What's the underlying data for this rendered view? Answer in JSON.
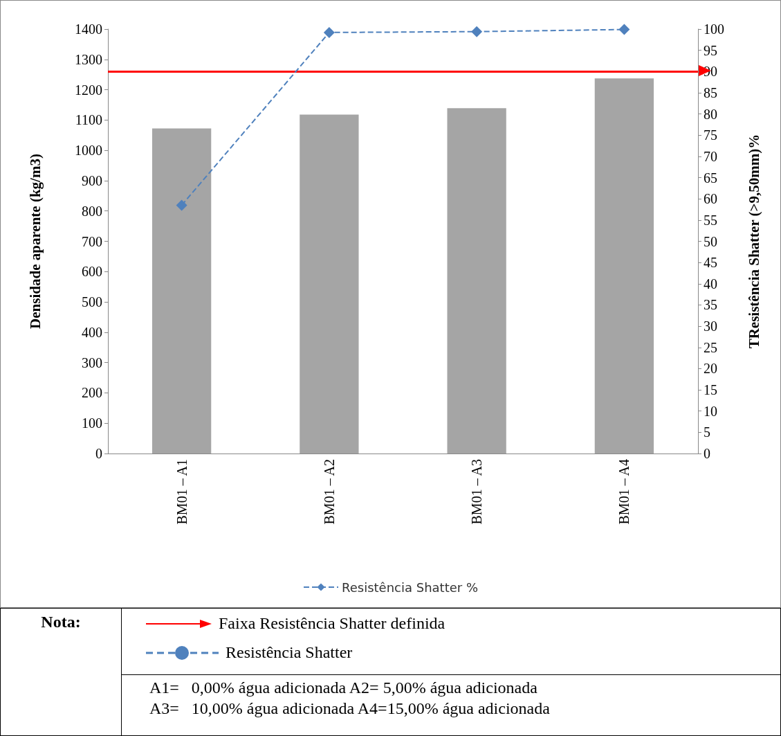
{
  "chart_data": {
    "type": "bar",
    "ylabel": "Densidade aparente (kg/m3)",
    "y2label": "TResistência Shatter (>9,50mm)%",
    "categories": [
      "BM01 – A1",
      "BM01 – A2",
      "BM01 – A3",
      "BM01 – A4"
    ],
    "series": [
      {
        "color": "#a5a5a5",
        "values": [
          1072,
          1118,
          1139,
          1237
        ]
      },
      {
        "type": "line",
        "name": "Resistência Shatter %",
        "color": "#4f81bd",
        "axis": "y2",
        "marker": "diamond",
        "line_style": "dashed",
        "values": [
          58.5,
          99.2,
          99.4,
          99.9
        ]
      }
    ],
    "ylim": [
      0,
      1400
    ],
    "yticks": [
      0,
      100,
      200,
      300,
      400,
      500,
      600,
      700,
      800,
      900,
      1000,
      1100,
      1200,
      1300,
      1400
    ],
    "y2lim": [
      0,
      100
    ],
    "y2ticks": [
      0,
      5,
      10,
      15,
      20,
      25,
      30,
      35,
      40,
      45,
      50,
      55,
      60,
      65,
      70,
      75,
      80,
      85,
      90,
      95,
      100
    ],
    "ref_lines": [
      {
        "axis": "y2",
        "value": 90,
        "label": "Faixa Resistência Shatter definida",
        "color": "#ff0000"
      }
    ],
    "legend": "bottom",
    "grid": false,
    "annotations": [
      "Nota:",
      "Resistência Shatter",
      "A1=   0,00% água adicionada A2= 5,00% água adicionada",
      "A3=   10,00% água adicionada A4=15,00% água adicionada"
    ]
  }
}
